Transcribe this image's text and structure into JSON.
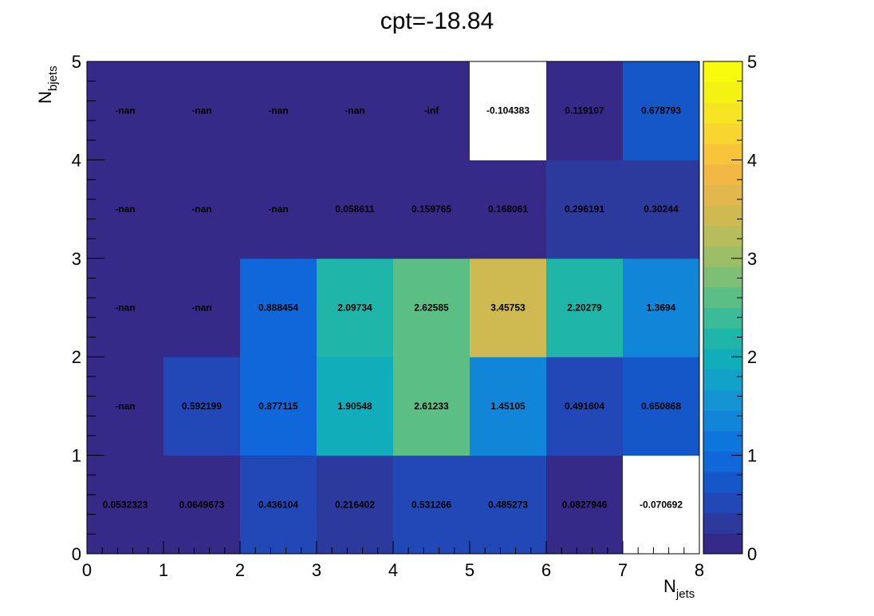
{
  "chart_data": {
    "type": "heatmap",
    "title": "cpt=-18.84",
    "xlabel": {
      "main": "N",
      "sub": "jets"
    },
    "ylabel": {
      "main": "N",
      "sub": "bjets"
    },
    "xlim": [
      0,
      8
    ],
    "ylim": [
      0,
      5
    ],
    "x_ticks": [
      "0",
      "1",
      "2",
      "3",
      "4",
      "5",
      "6",
      "7",
      "8"
    ],
    "y_ticks": [
      "0",
      "1",
      "2",
      "3",
      "4",
      "5"
    ],
    "colorbar": {
      "min": 0,
      "max": 5,
      "ticks": [
        "0",
        "1",
        "2",
        "3",
        "4",
        "5"
      ],
      "palette": "parula"
    },
    "grid": false,
    "rows": [
      {
        "y": 0,
        "labels": [
          "0.0532323",
          "0.0649673",
          "0.436104",
          "0.216402",
          "0.531266",
          "0.485273",
          "0.0827946",
          "-0.070692"
        ],
        "values": [
          0.0532323,
          0.0649673,
          0.436104,
          0.216402,
          0.531266,
          0.485273,
          0.0827946,
          -0.070692
        ]
      },
      {
        "y": 1,
        "labels": [
          "-nan",
          "0.592199",
          "0.877115",
          "1.90548",
          "2.61233",
          "1.45105",
          "0.491604",
          "0.650868"
        ],
        "values": [
          null,
          0.592199,
          0.877115,
          1.90548,
          2.61233,
          1.45105,
          0.491604,
          0.650868
        ]
      },
      {
        "y": 2,
        "labels": [
          "-nan",
          "-nan",
          "0.888454",
          "2.09734",
          "2.62585",
          "3.45753",
          "2.20279",
          "1.3694"
        ],
        "values": [
          null,
          null,
          0.888454,
          2.09734,
          2.62585,
          3.45753,
          2.20279,
          1.3694
        ]
      },
      {
        "y": 3,
        "labels": [
          "-nan",
          "-nan",
          "-nan",
          "0.058611",
          "0.159765",
          "0.168061",
          "0.296191",
          "0.30244"
        ],
        "values": [
          null,
          null,
          null,
          0.058611,
          0.159765,
          0.168061,
          0.296191,
          0.30244
        ]
      },
      {
        "y": 4,
        "labels": [
          "-nan",
          "-nan",
          "-nan",
          "-nan",
          "-inf",
          "-0.104383",
          "0.119107",
          "0.678793"
        ],
        "values": [
          null,
          null,
          null,
          null,
          null,
          -0.104383,
          0.119107,
          0.678793
        ]
      }
    ]
  }
}
